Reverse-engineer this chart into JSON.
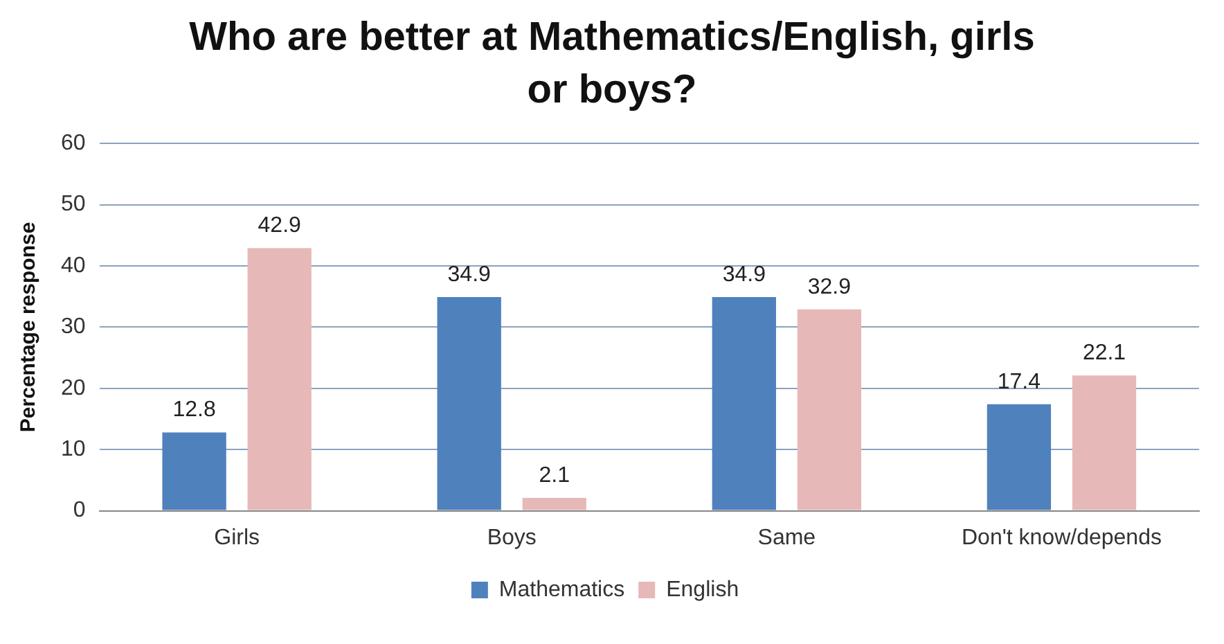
{
  "chart_data": {
    "type": "bar",
    "title": "Who are better at Mathematics/English, girls or boys?",
    "ylabel": "Percentage response",
    "categories": [
      "Girls",
      "Boys",
      "Same",
      "Don't know/depends"
    ],
    "series": [
      {
        "name": "Mathematics",
        "color": "#4f81bd",
        "values": [
          12.8,
          34.9,
          34.9,
          17.4
        ]
      },
      {
        "name": "English",
        "color": "#e6b9b8",
        "values": [
          42.9,
          2.1,
          32.9,
          22.1
        ]
      }
    ],
    "ylim": [
      0,
      60
    ],
    "yticks": [
      0,
      10,
      20,
      30,
      40,
      50,
      60
    ],
    "grid": "y",
    "legend": "bottom",
    "data_labels": true
  }
}
